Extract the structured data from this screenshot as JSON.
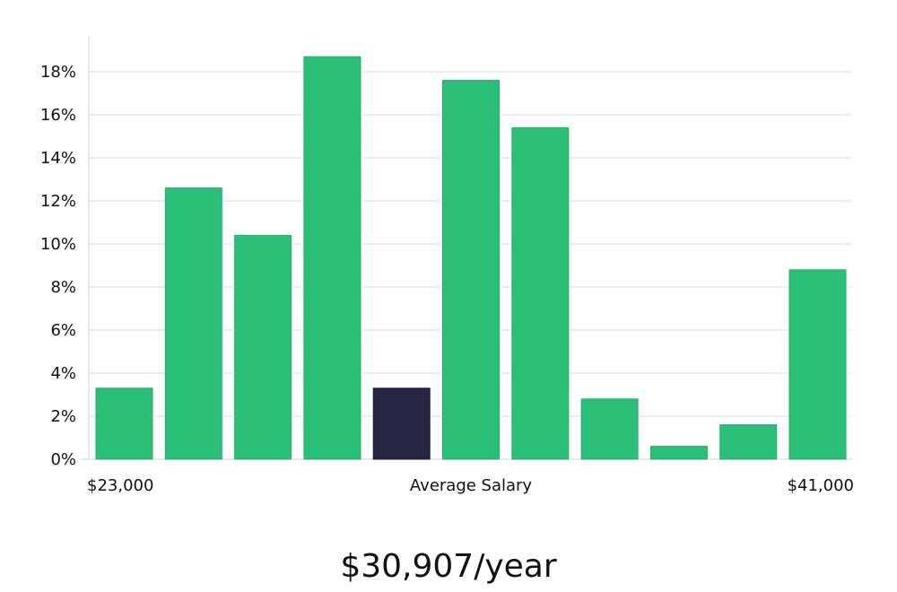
{
  "chart_data": {
    "type": "bar",
    "title": "",
    "xlabel": "Average Salary",
    "ylabel": "",
    "x_min_label": "$23,000",
    "x_max_label": "$41,000",
    "y_tick_labels": [
      "0%",
      "2%",
      "4%",
      "6%",
      "8%",
      "10%",
      "12%",
      "14%",
      "16%",
      "18%"
    ],
    "ylim": [
      0,
      19.6
    ],
    "values": [
      3.3,
      12.6,
      10.4,
      18.7,
      3.3,
      17.6,
      15.4,
      2.8,
      0.6,
      1.6,
      8.8
    ],
    "highlight_index": 4,
    "grid": true,
    "colors": {
      "bar": "#2bbf78",
      "highlight": "#282544",
      "grid": "#dcdcdc",
      "axis": "#d6d6d6"
    }
  },
  "salary_summary": "$30,907/year"
}
